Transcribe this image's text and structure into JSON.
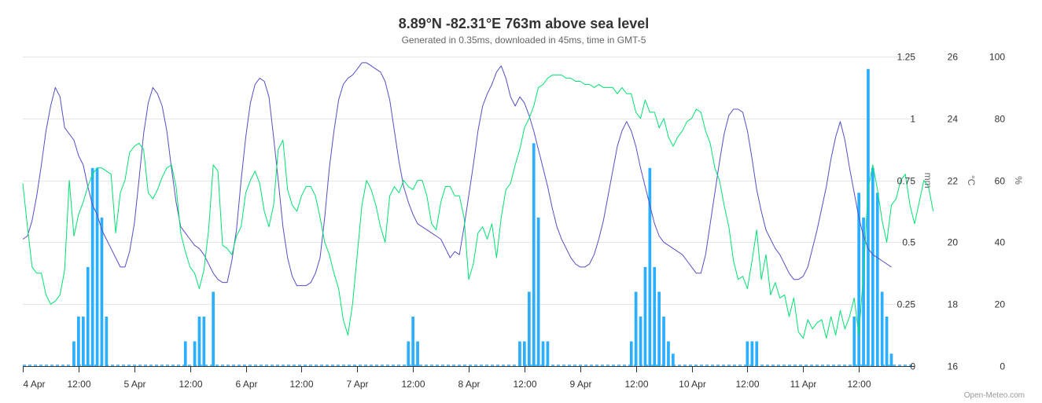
{
  "chart_data": {
    "type": "line",
    "title": "8.89°N -82.31°E 763m above sea level",
    "subtitle": "Generated in 0.35ms, downloaded in 45ms, time in GMT-5",
    "credits": "Open-Meteo.com",
    "x_tick_labels": [
      "4 Apr",
      "12:00",
      "5 Apr",
      "12:00",
      "6 Apr",
      "12:00",
      "7 Apr",
      "12:00",
      "8 Apr",
      "12:00",
      "9 Apr",
      "12:00",
      "10 Apr",
      "12:00",
      "11 Apr",
      "12:00"
    ],
    "x_range_hours": [
      0,
      192
    ],
    "axes": {
      "precipitation": {
        "unit": "mm",
        "ylim": [
          0,
          1.25
        ],
        "tick_values": [
          0,
          0.25,
          0.5,
          0.75,
          1,
          1.25
        ],
        "tick_labels": [
          "0",
          "0.25",
          "0.5",
          "0.75",
          "1",
          "1.25"
        ]
      },
      "temperature": {
        "unit": "°C",
        "ylim": [
          16,
          26
        ],
        "tick_labels": [
          "16",
          "18",
          "20",
          "22",
          "24",
          "26"
        ]
      },
      "humidity": {
        "unit": "%",
        "ylim": [
          0,
          100
        ],
        "tick_labels": [
          "0",
          "20",
          "40",
          "60",
          "80",
          "100"
        ]
      }
    },
    "grid": true,
    "colors": {
      "precipitation": "#2caffe",
      "temperature": "#544fc5",
      "humidity": "#00e272",
      "grid": "#e6e6e6",
      "axis": "#333333"
    },
    "series": [
      {
        "axis": "precipitation",
        "kind": "column",
        "hours": [
          11,
          12,
          13,
          14,
          15,
          16,
          17,
          18,
          35,
          37,
          38,
          39,
          41,
          83,
          84,
          85,
          107,
          108,
          109,
          110,
          111,
          112,
          113,
          131,
          132,
          133,
          134,
          135,
          136,
          137,
          138,
          139,
          140,
          156,
          157,
          158,
          179,
          180,
          181,
          182,
          183,
          184,
          185,
          186,
          187
        ],
        "values": [
          0.1,
          0.2,
          0.2,
          0.4,
          0.8,
          0.8,
          0.6,
          0.2,
          0.1,
          0.1,
          0.2,
          0.2,
          0.3,
          0.1,
          0.2,
          0.1,
          0.1,
          0.1,
          0.3,
          0.9,
          0.6,
          0.1,
          0.1,
          0.1,
          0.3,
          0.2,
          0.4,
          0.8,
          0.4,
          0.3,
          0.2,
          0.1,
          0.05,
          0.1,
          0.1,
          0.1,
          0.2,
          0.7,
          0.6,
          1.2,
          0.8,
          0.7,
          0.3,
          0.2,
          0.05
        ]
      },
      {
        "axis": "temperature",
        "kind": "line",
        "values": [
          20.1,
          20.2,
          20.7,
          21.5,
          22.5,
          23.6,
          24.4,
          25,
          24.7,
          23.7,
          23.5,
          23.3,
          22.8,
          22.5,
          21.8,
          21.2,
          20.9,
          20.4,
          20.1,
          19.8,
          19.5,
          19.2,
          19.2,
          19.7,
          20.6,
          22,
          23.5,
          24.5,
          25,
          24.8,
          24.4,
          23.6,
          22.4,
          21.3,
          20.5,
          20.3,
          20.1,
          19.9,
          19.8,
          19.6,
          19.3,
          19,
          18.8,
          18.7,
          18.7,
          19.4,
          20.4,
          22,
          23.4,
          24.5,
          25.1,
          25.3,
          25.2,
          24.7,
          23.4,
          22,
          20.5,
          19.5,
          18.9,
          18.6,
          18.6,
          18.6,
          18.7,
          19,
          19.5,
          20.8,
          22.4,
          23.6,
          24.6,
          25.1,
          25.3,
          25.4,
          25.6,
          25.8,
          25.8,
          25.7,
          25.6,
          25.5,
          25.2,
          24.6,
          23.6,
          22.6,
          21.8,
          21.3,
          20.9,
          20.6,
          20.5,
          20.4,
          20.3,
          20.2,
          20.1,
          19.8,
          19.5,
          19.7,
          19.6,
          20.5,
          21.5,
          22.5,
          23.6,
          24.4,
          24.8,
          25.1,
          25.5,
          25.7,
          25.3,
          24.7,
          24.4,
          24.7,
          24.5,
          24.1,
          23.6,
          23,
          22.4,
          21.8,
          21.1,
          20.5,
          20.1,
          19.8,
          19.5,
          19.3,
          19.2,
          19.2,
          19.3,
          19.6,
          20.1,
          20.7,
          21.5,
          22.3,
          23.1,
          23.6,
          23.9,
          23.6,
          23.1,
          22.4,
          21.8,
          21.2,
          20.6,
          20.2,
          20,
          19.9,
          19.8,
          19.7,
          19.6,
          19.4,
          19.2,
          19,
          19,
          19.6,
          20.6,
          21.6,
          22.6,
          23.5,
          24.1,
          24.3,
          24.3,
          24.2,
          23.6,
          22.7,
          21.7,
          21,
          20.4,
          20.1,
          19.8,
          19.6,
          19.3,
          19,
          18.8,
          18.8,
          18.9,
          19.2,
          19.8,
          20.4,
          21.1,
          21.8,
          22.7,
          23.4,
          23.9,
          23.3,
          22.4,
          21.6,
          20.8,
          20.2,
          19.8,
          19.6,
          19.5,
          19.4,
          19.3,
          19.2
        ]
      },
      {
        "axis": "humidity",
        "kind": "line",
        "values": [
          59,
          45,
          32,
          30,
          30,
          23,
          20,
          21,
          23,
          31,
          60,
          42,
          49,
          53,
          58,
          62,
          64,
          64,
          63,
          62,
          43,
          56,
          60,
          69,
          71,
          72,
          70,
          56,
          54,
          57,
          61,
          64,
          65,
          58,
          43,
          37,
          32,
          30,
          25,
          31,
          44,
          65,
          63,
          39,
          38,
          36,
          42,
          45,
          56,
          60,
          63,
          59,
          50,
          45,
          52,
          70,
          73,
          57,
          52,
          50,
          55,
          58,
          58,
          55,
          48,
          40,
          36,
          30,
          25,
          15,
          10,
          20,
          36,
          52,
          60,
          57,
          52,
          45,
          40,
          55,
          58,
          56,
          60,
          58,
          57,
          60,
          60,
          55,
          46,
          44,
          53,
          58,
          58,
          55,
          55,
          48,
          28,
          33,
          43,
          45,
          41,
          46,
          35,
          48,
          57,
          59,
          65,
          70,
          77,
          80,
          84,
          90,
          91,
          93,
          94,
          94,
          94,
          93,
          93,
          92,
          92,
          91,
          91,
          90,
          91,
          90,
          90,
          90,
          88,
          90,
          88,
          88,
          82,
          80,
          86,
          82,
          82,
          77,
          80,
          74,
          71,
          74,
          76,
          79,
          80,
          83,
          82,
          76,
          72,
          64,
          60,
          52,
          45,
          34,
          28,
          29,
          25,
          34,
          44,
          28,
          36,
          23,
          27,
          22,
          23,
          16,
          22,
          11,
          9,
          15,
          12,
          14,
          15,
          9,
          16,
          10,
          18,
          12,
          16,
          22,
          10,
          30,
          57,
          65,
          57,
          47,
          40,
          52,
          54,
          60,
          62,
          52,
          46,
          53,
          60,
          58,
          50
        ]
      }
    ]
  }
}
